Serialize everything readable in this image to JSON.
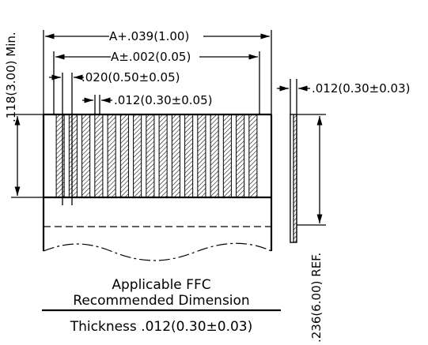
{
  "dimensions": {
    "overall_width": "A+.039(1.00)",
    "contact_span": "A±.002(0.05)",
    "pitch": ".020(0.50±0.05)",
    "contact_width": ".012(0.30±0.05)",
    "side_thickness": ".012(0.30±0.03)",
    "contact_length": ".118(3.00) Min.",
    "ref_length": ".236(6.00) REF."
  },
  "caption": {
    "line1": "Applicable FFC",
    "line2": "Recommended Dimension",
    "thickness": "Thickness .012(0.30±0.03)"
  },
  "contacts": {
    "count": 16
  }
}
